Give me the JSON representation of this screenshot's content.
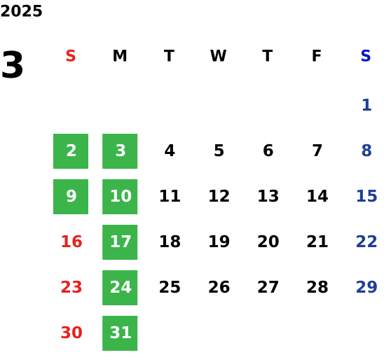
{
  "calendar": {
    "year": "2025",
    "month": "3",
    "weekdays": [
      "S",
      "M",
      "T",
      "W",
      "T",
      "F",
      "S"
    ],
    "weekday_colors": [
      "#e8211c",
      "#000000",
      "#000000",
      "#000000",
      "#000000",
      "#000000",
      "#0a14c8"
    ],
    "day_colors": [
      "#e8211c",
      "#000000",
      "#000000",
      "#000000",
      "#000000",
      "#000000",
      "#1f3f96"
    ],
    "highlight_color": "#3bb54a",
    "highlight_text_color": "#ffffff",
    "weeks": [
      [
        null,
        null,
        null,
        null,
        null,
        null,
        {
          "label": "1",
          "highlighted": false
        }
      ],
      [
        {
          "label": "2",
          "highlighted": true
        },
        {
          "label": "3",
          "highlighted": true
        },
        {
          "label": "4",
          "highlighted": false
        },
        {
          "label": "5",
          "highlighted": false
        },
        {
          "label": "6",
          "highlighted": false
        },
        {
          "label": "7",
          "highlighted": false
        },
        {
          "label": "8",
          "highlighted": false
        }
      ],
      [
        {
          "label": "9",
          "highlighted": true
        },
        {
          "label": "10",
          "highlighted": true
        },
        {
          "label": "11",
          "highlighted": false
        },
        {
          "label": "12",
          "highlighted": false
        },
        {
          "label": "13",
          "highlighted": false
        },
        {
          "label": "14",
          "highlighted": false
        },
        {
          "label": "15",
          "highlighted": false
        }
      ],
      [
        {
          "label": "16",
          "highlighted": false
        },
        {
          "label": "17",
          "highlighted": true
        },
        {
          "label": "18",
          "highlighted": false
        },
        {
          "label": "19",
          "highlighted": false
        },
        {
          "label": "20",
          "highlighted": false
        },
        {
          "label": "21",
          "highlighted": false
        },
        {
          "label": "22",
          "highlighted": false
        }
      ],
      [
        {
          "label": "23",
          "highlighted": false
        },
        {
          "label": "24",
          "highlighted": true
        },
        {
          "label": "25",
          "highlighted": false
        },
        {
          "label": "26",
          "highlighted": false
        },
        {
          "label": "27",
          "highlighted": false
        },
        {
          "label": "28",
          "highlighted": false
        },
        {
          "label": "29",
          "highlighted": false
        }
      ],
      [
        {
          "label": "30",
          "highlighted": false
        },
        {
          "label": "31",
          "highlighted": true
        },
        null,
        null,
        null,
        null,
        null
      ]
    ]
  }
}
